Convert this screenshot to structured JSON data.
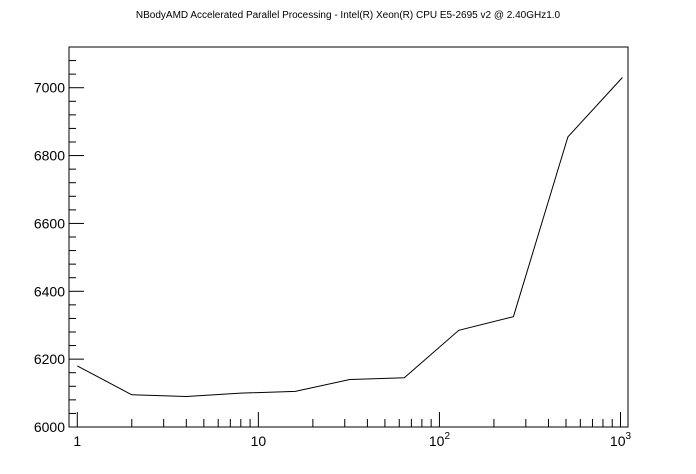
{
  "chart_data": {
    "type": "line",
    "title": "NBodyAMD Accelerated Parallel Processing - Intel(R) Xeon(R) CPU E5-2695 v2 @ 2.40GHz1.0",
    "xlabel": "",
    "ylabel": "",
    "x_scale": "log",
    "xlim": [
      0.9,
      1100
    ],
    "ylim": [
      6000,
      7120
    ],
    "x_ticks": [
      {
        "value": 1,
        "label": "1"
      },
      {
        "value": 10,
        "label": "10"
      },
      {
        "value": 100,
        "label": "10",
        "sup": "2"
      },
      {
        "value": 1000,
        "label": "10",
        "sup": "3"
      }
    ],
    "y_ticks": [
      6000,
      6200,
      6400,
      6600,
      6800,
      7000
    ],
    "grid": false,
    "series": [
      {
        "color": "#000000",
        "x": [
          1,
          2,
          4,
          8,
          16,
          32,
          64,
          128,
          256,
          512,
          1024
        ],
        "y": [
          6180,
          6095,
          6090,
          6100,
          6105,
          6140,
          6145,
          6285,
          6325,
          6855,
          7030
        ]
      }
    ]
  }
}
